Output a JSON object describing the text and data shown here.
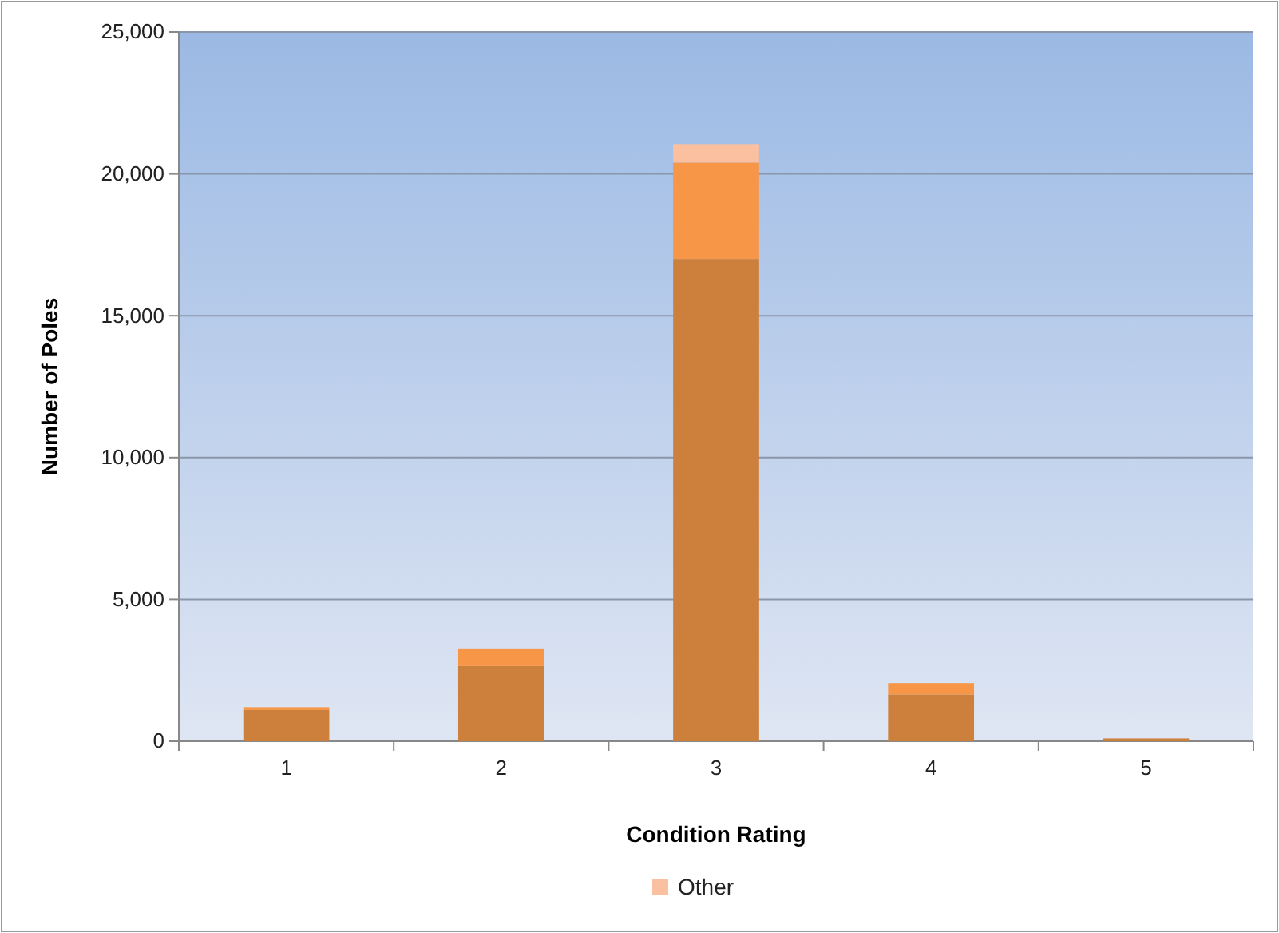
{
  "chart_data": {
    "type": "bar",
    "xlabel": "Condition Rating",
    "ylabel": "Number of Poles",
    "categories": [
      "1",
      "2",
      "3",
      "4",
      "5"
    ],
    "stacked": true,
    "series": [
      {
        "color": "#cd7f3c",
        "values": [
          1100,
          2650,
          17000,
          1650,
          100
        ]
      },
      {
        "color": "#f79646",
        "values": [
          100,
          620,
          3400,
          400,
          null
        ]
      },
      {
        "name": "Other",
        "color": "#fac0a0",
        "values": [
          0,
          0,
          650,
          0,
          0
        ]
      }
    ],
    "ylim": [
      0,
      25000
    ],
    "yticks": [
      {
        "value": 0,
        "label": "0"
      },
      {
        "value": 5000,
        "label": "5,000"
      },
      {
        "value": 10000,
        "label": "10,000"
      },
      {
        "value": 15000,
        "label": "15,000"
      },
      {
        "value": 20000,
        "label": "20,000"
      },
      {
        "value": 25000,
        "label": "25,000"
      }
    ],
    "grid": "y",
    "legend": "bottom"
  }
}
